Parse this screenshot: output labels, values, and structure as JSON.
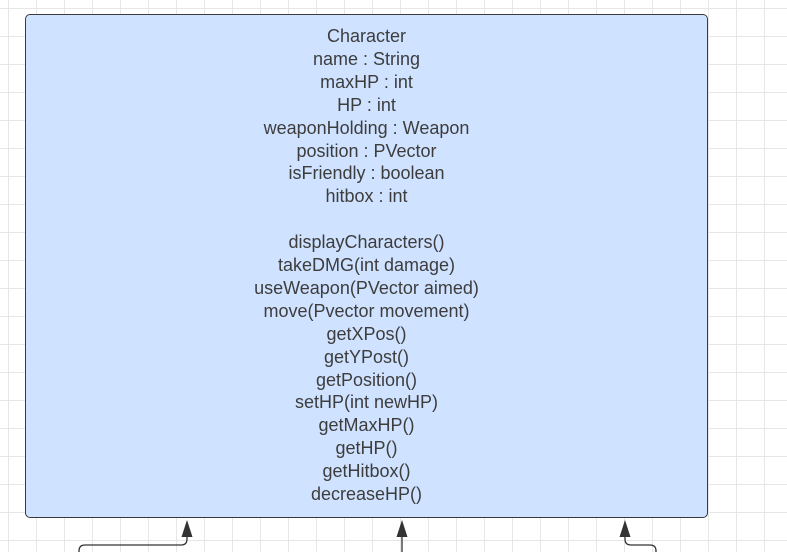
{
  "class": {
    "name": "Character",
    "attributes": [
      "name : String",
      "maxHP : int",
      "HP : int",
      "weaponHolding : Weapon",
      "position : PVector",
      "isFriendly : boolean",
      "hitbox : int"
    ],
    "methods": [
      "displayCharacters()",
      "takeDMG(int damage)",
      "useWeapon(PVector aimed)",
      "move(Pvector movement)",
      "getXPos()",
      "getYPost()",
      "getPosition()",
      "setHP(int newHP)",
      "getMaxHP()",
      "getHP()",
      "getHitbox()",
      "decreaseHP()"
    ]
  },
  "colors": {
    "box_fill": "#cfe2ff",
    "box_border": "#3a3a3a",
    "text": "#3d3d3d",
    "connector": "#333333"
  }
}
